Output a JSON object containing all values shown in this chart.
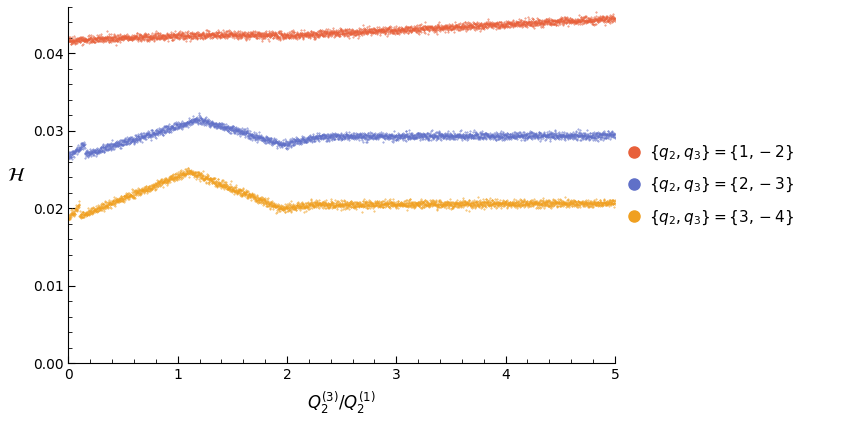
{
  "title": "",
  "xlabel": "$Q_2^{(3)} / Q_2^{(1)}$",
  "ylabel": "$\\mathcal{H}$",
  "xlim": [
    0,
    5
  ],
  "ylim": [
    0,
    0.046
  ],
  "yticks": [
    0.0,
    0.01,
    0.02,
    0.03,
    0.04
  ],
  "xticks": [
    0,
    1,
    2,
    3,
    4,
    5
  ],
  "series": [
    {
      "label": "$\\{q_2,q_3\\}=\\{1,-2\\}$",
      "color": "#E8603A"
    },
    {
      "label": "$\\{q_2,q_3\\}=\\{2,-3\\}$",
      "color": "#6070C8"
    },
    {
      "label": "$\\{q_2,q_3\\}=\\{3,-4\\}$",
      "color": "#F0A020"
    }
  ],
  "noise_amplitude": 0.00025,
  "n_points": 3000,
  "figsize": [
    8.54,
    4.23
  ],
  "dpi": 100,
  "background_color": "#ffffff"
}
